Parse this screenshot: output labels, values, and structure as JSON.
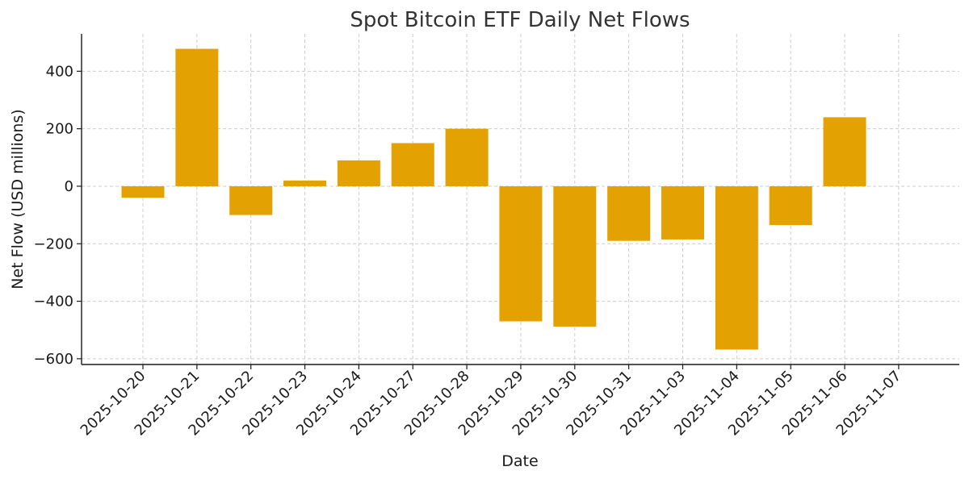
{
  "chart_data": {
    "type": "bar",
    "title": "Spot Bitcoin ETF Daily Net Flows",
    "xlabel": "Date",
    "ylabel": "Net Flow (USD millions)",
    "categories": [
      "2025-10-20",
      "2025-10-21",
      "2025-10-22",
      "2025-10-23",
      "2025-10-24",
      "2025-10-27",
      "2025-10-28",
      "2025-10-29",
      "2025-10-30",
      "2025-10-31",
      "2025-11-03",
      "2025-11-04",
      "2025-11-05",
      "2025-11-06",
      "2025-11-07"
    ],
    "values": [
      -40,
      478,
      -100,
      20,
      90,
      150,
      200,
      -470,
      -488,
      -190,
      -185,
      -568,
      -135,
      240,
      null
    ],
    "ylim": [
      -620,
      530
    ],
    "yticks": [
      -600,
      -400,
      -200,
      0,
      200,
      400
    ],
    "ytick_labels": [
      "−600",
      "−400",
      "−200",
      "0",
      "200",
      "400"
    ],
    "bar_color": "#E3A102",
    "grid": true
  }
}
